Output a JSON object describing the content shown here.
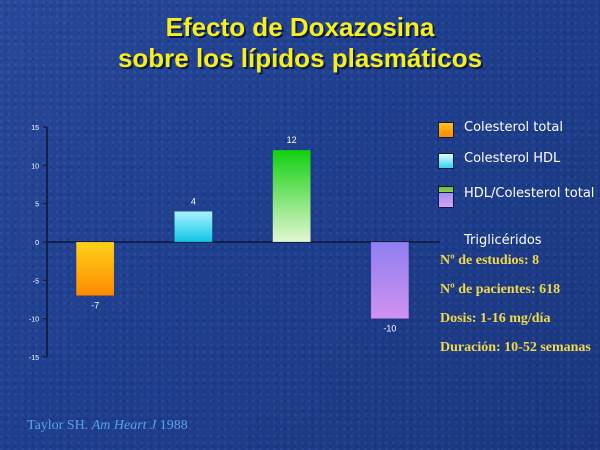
{
  "title": {
    "line1": "Efecto de Doxazosina",
    "line2": "sobre los lípidos plasmáticos"
  },
  "chart_data": {
    "type": "bar",
    "categories": [
      "Colesterol total",
      "Colesterol HDL",
      "HDL/Colesterol total",
      "Triglicéridos"
    ],
    "values": [
      -7,
      4,
      12,
      -10
    ],
    "data_labels": [
      "-7",
      "4",
      "12",
      "-10"
    ],
    "ylim": [
      -15,
      15
    ],
    "yticks": [
      "15",
      "10",
      "5",
      "0",
      "-5",
      "-10",
      "-15"
    ],
    "grid": false,
    "legend_position": "right",
    "colors": [
      {
        "top": "#ffd21a",
        "bottom": "#ff8a00"
      },
      {
        "top": "#a8f4ff",
        "bottom": "#10c4e6"
      },
      {
        "top": "#10d010",
        "bottom": "#e4f7d2"
      },
      {
        "top": "#8f7ff0",
        "bottom": "#d092f0"
      }
    ]
  },
  "legend": {
    "items": [
      {
        "label": "Colesterol total",
        "color": "#ff9f0a"
      },
      {
        "label": "Colesterol HDL",
        "color": "#7ee8ff"
      },
      {
        "label": "HDL/Colesterol total",
        "color": "#8fcf4f"
      },
      {
        "label": "Triglicéridos",
        "color": ""
      }
    ]
  },
  "stats": {
    "estudios": "Nº de estudios: 8",
    "pacientes": "Nº de pacientes: 618",
    "dosis": "Dosis: 1-16 mg/día",
    "duracion": "Duración: 10-52 semanas"
  },
  "citation": {
    "authors": "Taylor SH.",
    "journal": "Am Heart J",
    "year": "1988"
  }
}
